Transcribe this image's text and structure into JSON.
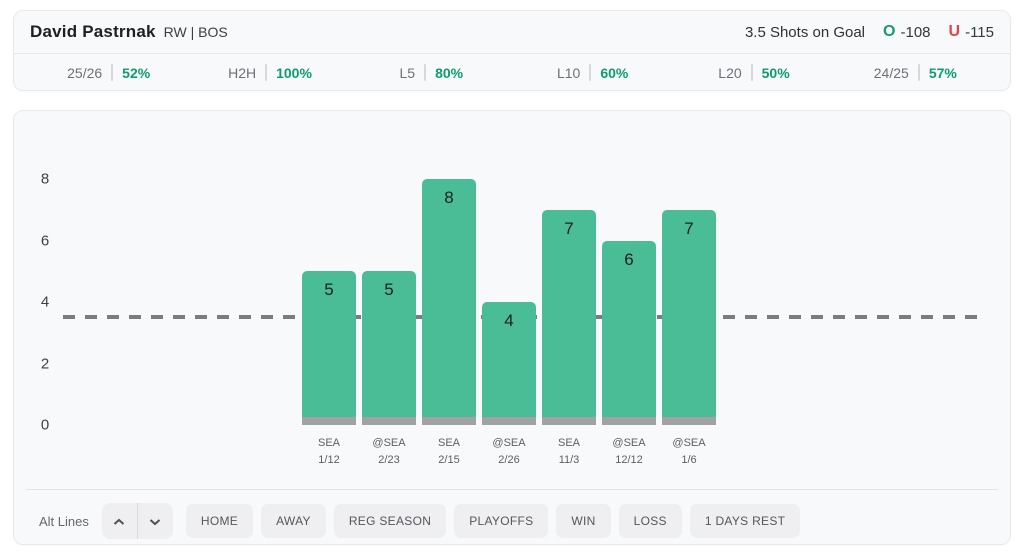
{
  "header": {
    "player_name": "David Pastrnak",
    "player_meta": "RW | BOS",
    "prop_label": "3.5 Shots on Goal",
    "over": {
      "symbol": "O",
      "odds": "-108"
    },
    "under": {
      "symbol": "U",
      "odds": "-115"
    }
  },
  "splits": [
    {
      "label": "25/26",
      "value": "52%"
    },
    {
      "label": "H2H",
      "value": "100%"
    },
    {
      "label": "L5",
      "value": "80%"
    },
    {
      "label": "L10",
      "value": "60%"
    },
    {
      "label": "L20",
      "value": "50%"
    },
    {
      "label": "24/25",
      "value": "57%"
    }
  ],
  "chart_data": {
    "type": "bar",
    "categories": [
      [
        "SEA",
        "1/12"
      ],
      [
        "@SEA",
        "2/23"
      ],
      [
        "SEA",
        "2/15"
      ],
      [
        "@SEA",
        "2/26"
      ],
      [
        "SEA",
        "11/3"
      ],
      [
        "@SEA",
        "12/12"
      ],
      [
        "@SEA",
        "1/6"
      ]
    ],
    "values": [
      5,
      5,
      8,
      4,
      7,
      6,
      7
    ],
    "prop_line": 3.5,
    "yticks": [
      0,
      2,
      4,
      6,
      8
    ],
    "ylim": [
      0,
      8.6
    ],
    "grid": false,
    "legend": false
  },
  "controls": {
    "alt_lines_label": "Alt Lines",
    "stepper": {
      "up": "chevron-up-icon",
      "down": "chevron-down-icon"
    },
    "filters": [
      "HOME",
      "AWAY",
      "REG SEASON",
      "PLAYOFFS",
      "WIN",
      "LOSS",
      "1 DAYS REST"
    ]
  },
  "colors": {
    "over_green": "#169c6d",
    "under_red": "#e3444a",
    "split_pct_green": "#0d9d6c",
    "bar_green": "#4abc96",
    "bar_base_gray": "#a2a2a4",
    "prop_line_gray": "#7b7c80"
  }
}
